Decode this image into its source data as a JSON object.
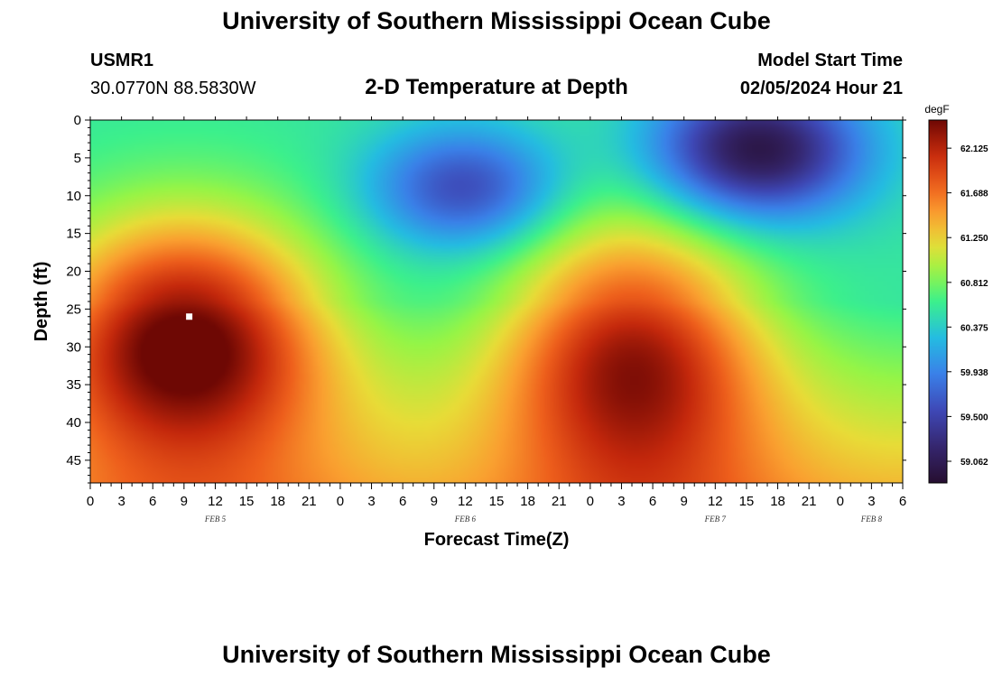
{
  "header": {
    "title_top": "University of Southern Mississippi Ocean Cube",
    "station_id": "USMR1",
    "coords": "30.0770N  88.5830W",
    "subtitle": "2-D Temperature at Depth",
    "model_start_label": "Model Start Time",
    "model_start_value": "02/05/2024 Hour 21",
    "title_bottom": "University of Southern Mississippi Ocean Cube"
  },
  "chart_data": {
    "type": "heatmap",
    "title": "2-D Temperature at Depth",
    "xlabel": "Forecast Time(Z)",
    "ylabel": "Depth (ft)",
    "x_range_hours": [
      0,
      78
    ],
    "y_range_ft": [
      0,
      48
    ],
    "x_ticks": [
      "0",
      "3",
      "6",
      "9",
      "12",
      "15",
      "18",
      "21",
      "0",
      "3",
      "6",
      "9",
      "12",
      "15",
      "18",
      "21",
      "0",
      "3",
      "6",
      "9",
      "12",
      "15",
      "18",
      "21",
      "0",
      "3",
      "6"
    ],
    "date_labels": [
      {
        "label": "FEB 5",
        "hour": 12
      },
      {
        "label": "FEB 6",
        "hour": 36
      },
      {
        "label": "FEB 7",
        "hour": 60
      },
      {
        "label": "FEB 8",
        "hour": 75
      }
    ],
    "y_ticks": [
      0,
      5,
      10,
      15,
      20,
      25,
      30,
      35,
      40,
      45
    ],
    "colorbar": {
      "unit": "degF",
      "min": 58.85,
      "max": 62.4,
      "tick_labels": [
        "62.125",
        "61.688",
        "61.250",
        "60.812",
        "60.375",
        "59.938",
        "59.500",
        "59.062"
      ]
    },
    "field_features": [
      {
        "name": "surface-ambient",
        "value": 60.55
      },
      {
        "name": "warm-core-feb5",
        "hour": 9,
        "depth": 28,
        "value": 62.35
      },
      {
        "name": "cool-core-feb6",
        "hour": 36,
        "depth": 9,
        "value": 59.55
      },
      {
        "name": "warm-core-feb7",
        "hour": 52,
        "depth": 30,
        "value": 62.0
      },
      {
        "name": "cold-core-feb7",
        "hour": 64,
        "depth": 4,
        "value": 58.95
      }
    ],
    "marker": {
      "hour": 9.5,
      "depth": 26
    }
  }
}
